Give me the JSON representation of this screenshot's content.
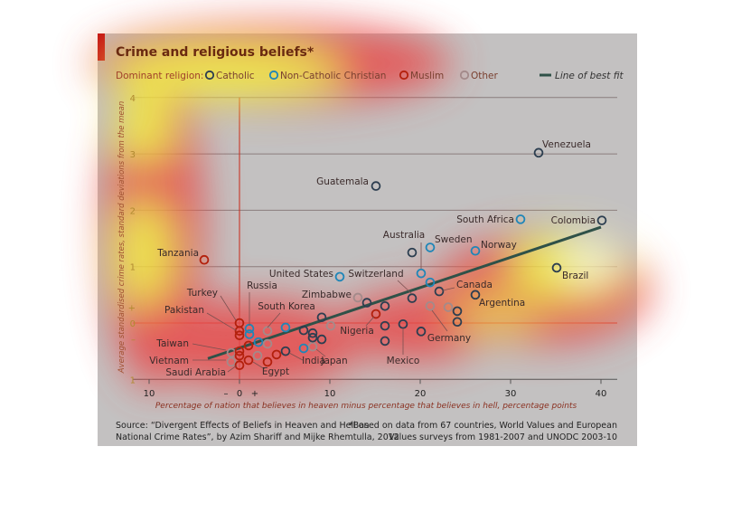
{
  "chart_data": {
    "type": "scatter",
    "title": "Crime and religious beliefs*",
    "legend_label": "Dominant religion:",
    "legend": [
      {
        "key": "catholic",
        "label": "Catholic",
        "color": "#2c3e50"
      },
      {
        "key": "noncath",
        "label": "Non-Catholic Christian",
        "color": "#1f86b8"
      },
      {
        "key": "muslim",
        "label": "Muslim",
        "color": "#b3200c"
      },
      {
        "key": "other",
        "label": "Other",
        "color": "#a38a8a"
      }
    ],
    "fit_label": "Line of best fit",
    "fit_color": "#2f5148",
    "fit_line": [
      [
        -3.5,
        -0.63
      ],
      [
        40,
        1.7
      ]
    ],
    "xlabel": "Percentage of nation that believes in heaven minus percentage that believes in hell, percentage points",
    "ylabel": "Average standardised crime rates, standard deviations from the mean",
    "xlim": [
      -10,
      41
    ],
    "ylim": [
      -1,
      4
    ],
    "x_ticks": [
      {
        "v": -10,
        "t": "10"
      },
      {
        "v": -1.5,
        "t": "–"
      },
      {
        "v": 0,
        "t": "0"
      },
      {
        "v": 1.7,
        "t": "+"
      },
      {
        "v": 10,
        "t": "10"
      },
      {
        "v": 20,
        "t": "20"
      },
      {
        "v": 30,
        "t": "30"
      },
      {
        "v": 40,
        "t": "40"
      }
    ],
    "y_ticks": [
      {
        "v": 4,
        "t": "4"
      },
      {
        "v": 3,
        "t": "3"
      },
      {
        "v": 2,
        "t": "2"
      },
      {
        "v": 1,
        "t": "1"
      },
      {
        "v": 0.28,
        "t": "+"
      },
      {
        "v": 0,
        "t": "0"
      },
      {
        "v": -0.28,
        "t": "–"
      },
      {
        "v": -1,
        "t": "1"
      }
    ],
    "points": [
      {
        "name": "Venezuela",
        "x": 33.1,
        "y": 3.02,
        "r": "catholic"
      },
      {
        "name": "Guatemala",
        "x": 15.1,
        "y": 2.43,
        "r": "catholic"
      },
      {
        "name": "South Africa",
        "x": 31.1,
        "y": 1.84,
        "r": "noncath"
      },
      {
        "name": "Colombia",
        "x": 40.1,
        "y": 1.82,
        "r": "catholic"
      },
      {
        "name": "Australia",
        "x": 20.1,
        "y": 0.88,
        "r": "noncath"
      },
      {
        "name": "Sweden",
        "x": 21.1,
        "y": 1.34,
        "r": "noncath"
      },
      {
        "name": "Norway",
        "x": 26.1,
        "y": 1.28,
        "r": "noncath"
      },
      {
        "name": "United States",
        "x": 11.1,
        "y": 0.82,
        "r": "noncath"
      },
      {
        "name": "Switzerland",
        "x": 19.1,
        "y": 0.44,
        "r": "catholic"
      },
      {
        "name": "Brazil",
        "x": 35.1,
        "y": 0.98,
        "r": "catholic"
      },
      {
        "name": "Canada",
        "x": 22.1,
        "y": 0.56,
        "r": "catholic"
      },
      {
        "name": "Argentina",
        "x": 26.1,
        "y": 0.5,
        "r": "catholic"
      },
      {
        "name": "Tanzania",
        "x": -3.9,
        "y": 1.12,
        "r": "muslim"
      },
      {
        "name": "Zimbabwe",
        "x": 13.1,
        "y": 0.45,
        "r": "other"
      },
      {
        "name": "Nigeria",
        "x": 15.1,
        "y": 0.16,
        "r": "muslim"
      },
      {
        "name": "Mexico",
        "x": 18.1,
        "y": -0.02,
        "r": "catholic"
      },
      {
        "name": "Germany",
        "x": 21.1,
        "y": 0.3,
        "r": "other"
      },
      {
        "name": "Japan",
        "x": 8.1,
        "y": -0.42,
        "r": "other"
      },
      {
        "name": "India",
        "x": 7.1,
        "y": -0.45,
        "r": "noncath"
      },
      {
        "name": "Egypt",
        "x": 1.0,
        "y": -0.66,
        "r": "muslim"
      },
      {
        "name": "Turkey",
        "x": 0,
        "y": 0.0,
        "r": "muslim"
      },
      {
        "name": "Pakistan",
        "x": 0,
        "y": -0.14,
        "r": "muslim"
      },
      {
        "name": "Russia",
        "x": 1.1,
        "y": -0.1,
        "r": "noncath"
      },
      {
        "name": "South Korea",
        "x": 5.1,
        "y": -0.08,
        "r": "noncath"
      },
      {
        "name": "Taiwan",
        "x": -0.9,
        "y": -0.53,
        "r": "other"
      },
      {
        "name": "Vietnam",
        "x": -0.9,
        "y": -0.69,
        "r": "other"
      },
      {
        "name": "Saudi Arabia",
        "x": 0,
        "y": -0.75,
        "r": "muslim"
      },
      {
        "name": "",
        "x": 0,
        "y": -0.22,
        "r": "muslim"
      },
      {
        "name": "",
        "x": 0,
        "y": -0.5,
        "r": "muslim"
      },
      {
        "name": "",
        "x": 0,
        "y": -0.58,
        "r": "muslim"
      },
      {
        "name": "",
        "x": 1.0,
        "y": -0.4,
        "r": "muslim"
      },
      {
        "name": "",
        "x": 3.1,
        "y": -0.69,
        "r": "muslim"
      },
      {
        "name": "",
        "x": 4.1,
        "y": -0.56,
        "r": "muslim"
      },
      {
        "name": "",
        "x": 1.1,
        "y": -0.2,
        "r": "noncath"
      },
      {
        "name": "",
        "x": 2.1,
        "y": -0.34,
        "r": "noncath"
      },
      {
        "name": "",
        "x": 3.1,
        "y": -0.14,
        "r": "other"
      },
      {
        "name": "",
        "x": 3.1,
        "y": -0.37,
        "r": "other"
      },
      {
        "name": "",
        "x": 2.0,
        "y": -0.58,
        "r": "other"
      },
      {
        "name": "",
        "x": 10.1,
        "y": -0.05,
        "r": "other"
      },
      {
        "name": "",
        "x": 9.1,
        "y": 0.1,
        "r": "catholic"
      },
      {
        "name": "",
        "x": 7.1,
        "y": -0.13,
        "r": "catholic"
      },
      {
        "name": "",
        "x": 8.1,
        "y": -0.18,
        "r": "catholic"
      },
      {
        "name": "",
        "x": 8.1,
        "y": -0.26,
        "r": "catholic"
      },
      {
        "name": "",
        "x": 9.1,
        "y": -0.29,
        "r": "catholic"
      },
      {
        "name": "",
        "x": 5.1,
        "y": -0.5,
        "r": "catholic"
      },
      {
        "name": "",
        "x": 14.1,
        "y": 0.36,
        "r": "catholic"
      },
      {
        "name": "",
        "x": 16.1,
        "y": 0.3,
        "r": "catholic"
      },
      {
        "name": "",
        "x": 16.1,
        "y": -0.05,
        "r": "catholic"
      },
      {
        "name": "",
        "x": 16.1,
        "y": -0.32,
        "r": "catholic"
      },
      {
        "name": "",
        "x": 19.1,
        "y": 1.25,
        "r": "catholic"
      },
      {
        "name": "",
        "x": 21.1,
        "y": 0.72,
        "r": "noncath"
      },
      {
        "name": "",
        "x": 23.1,
        "y": 0.28,
        "r": "other"
      },
      {
        "name": "",
        "x": 24.1,
        "y": 0.21,
        "r": "catholic"
      },
      {
        "name": "",
        "x": 24.1,
        "y": 0.02,
        "r": "catholic"
      },
      {
        "name": "",
        "x": 20.1,
        "y": -0.15,
        "r": "catholic"
      }
    ],
    "source": "Source:  “Divergent Effects of Beliefs in Heaven and Hell on\nNational Crime Rates”, by Azim Shariff and Mijke Rhemtulla, 2012",
    "footnote": "*Based on data from 67 countries, World Values and European\nValues surveys from 1981-2007 and UNODC 2003-10"
  }
}
